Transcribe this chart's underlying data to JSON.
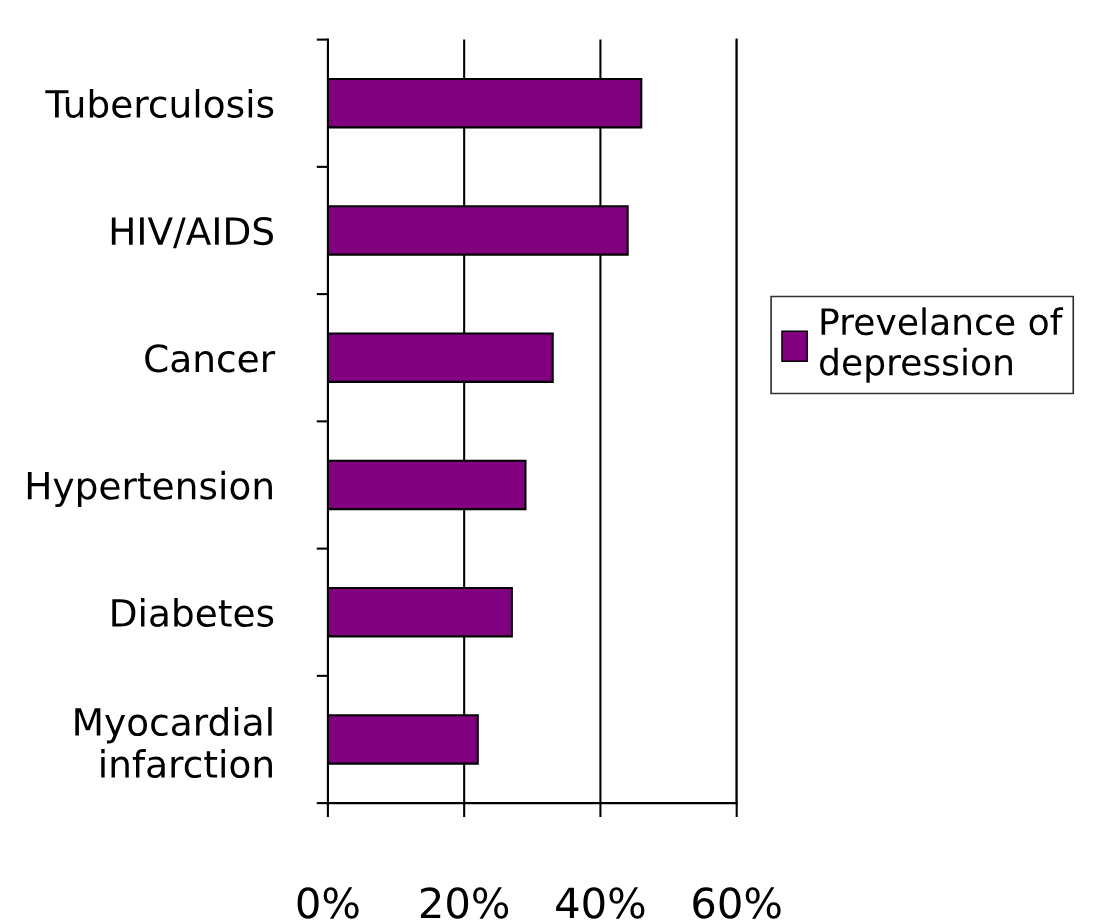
{
  "chart_data": {
    "type": "bar",
    "orientation": "horizontal",
    "categories": [
      "Tuberculosis",
      "HIV/AIDS",
      "Cancer",
      "Hypertension",
      "Diabetes",
      "Myocardial\ninfarction"
    ],
    "series": [
      {
        "name": "Prevelance of\ndepression",
        "color": "#800080",
        "values": [
          46,
          44,
          33,
          29,
          27,
          22
        ]
      }
    ],
    "xlim": [
      0,
      60
    ],
    "xticks": [
      {
        "value": 0,
        "label": "0%"
      },
      {
        "value": 20,
        "label": "20%"
      },
      {
        "value": 40,
        "label": "40%"
      },
      {
        "value": 60,
        "label": "60%"
      }
    ],
    "grid": "x",
    "legend": "right"
  }
}
